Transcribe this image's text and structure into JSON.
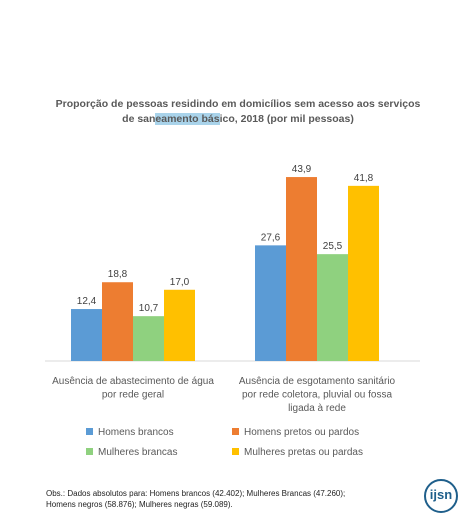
{
  "title": {
    "line1": "Proporção de pessoas residindo em domicílios sem acesso aos serviços",
    "line2_pre": "de san",
    "line2_hl": "eamento bás",
    "line2_post": "ico, 2018 (por mil pessoas)"
  },
  "footnote": {
    "line1": "Obs.: Dados absolutos para: Homens brancos (42.402); Mulheres Brancas (47.260);",
    "line2": "Homens negros (58.876); Mulheres negras (59.089)."
  },
  "logo": "ijsn",
  "chart_data": {
    "type": "bar",
    "categories": [
      [
        "Ausência de abastecimento de água",
        "por rede geral"
      ],
      [
        "Ausência de esgotamento sanitário",
        "por rede coletora, pluvial ou fossa",
        "ligada à rede"
      ]
    ],
    "series": [
      {
        "name": "Homens brancos",
        "color": "#5b9bd5",
        "values": [
          12.4,
          27.6
        ],
        "labels": [
          "12,4",
          "27,6"
        ]
      },
      {
        "name": "Homens pretos ou pardos",
        "color": "#ed7d31",
        "values": [
          18.8,
          43.9
        ],
        "labels": [
          "18,8",
          "43,9"
        ]
      },
      {
        "name": "Mulheres brancas",
        "color": "#8fd17f",
        "values": [
          10.7,
          25.5
        ],
        "labels": [
          "10,7",
          "25,5"
        ]
      },
      {
        "name": "Mulheres pretas ou pardas",
        "color": "#ffc000",
        "values": [
          17.0,
          41.8
        ],
        "labels": [
          "17,0",
          "41,8"
        ]
      }
    ],
    "ylim": [
      0,
      50
    ],
    "grid": false,
    "legend_position": "bottom"
  }
}
